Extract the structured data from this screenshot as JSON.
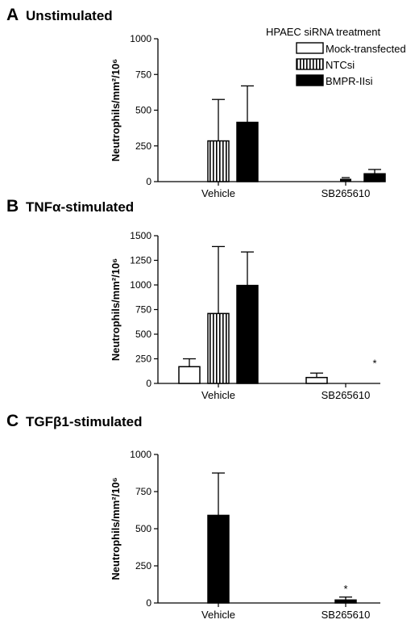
{
  "chart_data": [
    {
      "panel_letter": "A",
      "title": "Unstimulated",
      "type": "bar",
      "ylabel": "Neutrophils/mm²/10⁶",
      "ylim": [
        0,
        1000
      ],
      "yticks": [
        0,
        250,
        500,
        750,
        1000
      ],
      "categories": [
        "Vehicle",
        "SB265610"
      ],
      "legend_title": "HPAEC siRNA treatment",
      "legend_placement": "top-right",
      "series": [
        {
          "name": "Mock-transfected",
          "pattern": "open",
          "values": [
            0,
            0
          ],
          "errors": [
            0,
            0
          ]
        },
        {
          "name": "NTCsi",
          "pattern": "striped",
          "values": [
            285,
            0
          ],
          "errors": [
            290,
            0
          ]
        },
        {
          "name": "BMPR-IIsi",
          "pattern": "solid",
          "values": [
            415,
            55
          ],
          "errors": [
            255,
            30
          ]
        }
      ],
      "annotations": [],
      "small_marks": [
        {
          "category": 1,
          "series": 1,
          "value": 20,
          "error": 8
        }
      ]
    },
    {
      "panel_letter": "B",
      "title": "TNFα-stimulated",
      "type": "bar",
      "ylabel": "Neutrophils/mm²/10⁶",
      "ylim": [
        0,
        1500
      ],
      "yticks": [
        0,
        250,
        500,
        750,
        1000,
        1250,
        1500
      ],
      "categories": [
        "Vehicle",
        "SB265610"
      ],
      "series": [
        {
          "name": "Mock-transfected",
          "pattern": "open",
          "values": [
            170,
            60
          ],
          "errors": [
            80,
            45
          ]
        },
        {
          "name": "NTCsi",
          "pattern": "striped",
          "values": [
            710,
            0
          ],
          "errors": [
            680,
            0
          ]
        },
        {
          "name": "BMPR-IIsi",
          "pattern": "solid",
          "values": [
            995,
            0
          ],
          "errors": [
            340,
            0
          ]
        }
      ],
      "annotations": [
        {
          "category": 1,
          "series": 2,
          "text": "*",
          "value": 170
        }
      ],
      "small_marks": []
    },
    {
      "panel_letter": "C",
      "title": "TGFβ1-stimulated",
      "type": "bar",
      "ylabel": "Neutrophils/mm²/10⁶",
      "ylim": [
        0,
        1000
      ],
      "yticks": [
        0,
        250,
        500,
        750,
        1000
      ],
      "categories": [
        "Vehicle",
        "SB265610"
      ],
      "series": [
        {
          "name": "BMPR-IIsi",
          "pattern": "solid",
          "values": [
            590,
            20
          ],
          "errors": [
            285,
            20
          ]
        }
      ],
      "annotations": [
        {
          "category": 1,
          "series": 0,
          "text": "*",
          "value": 70
        }
      ],
      "small_marks": []
    }
  ]
}
